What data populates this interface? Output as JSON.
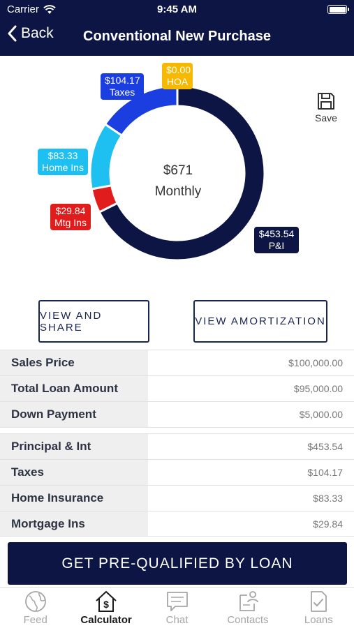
{
  "status": {
    "carrier": "Carrier",
    "time": "9:45 AM"
  },
  "nav": {
    "back_label": "Back",
    "title": "Conventional New Purchase"
  },
  "chart": {
    "center_amount": "$671",
    "center_label": "Monthly",
    "segments": [
      {
        "key": "pi",
        "value": 453.54,
        "color": "#0c1544",
        "line1": "$453.54",
        "line2": "P&I"
      },
      {
        "key": "mtg",
        "value": 29.84,
        "color": "#e01c1c",
        "line1": "$29.84",
        "line2": "Mtg Ins"
      },
      {
        "key": "home",
        "value": 83.33,
        "color": "#1ec0f2",
        "line1": "$83.33",
        "line2": "Home Ins"
      },
      {
        "key": "taxes",
        "value": 104.17,
        "color": "#1a3ee0",
        "line1": "$104.17",
        "line2": "Taxes"
      },
      {
        "key": "hoa",
        "value": 0.0,
        "color": "#f6b800",
        "line1": "$0.00",
        "line2": "HOA"
      }
    ]
  },
  "save_label": "Save",
  "buttons": {
    "view_share": "VIEW AND SHARE",
    "view_amort": "VIEW AMORTIZATION"
  },
  "table1": [
    {
      "label": "Sales Price",
      "value": "$100,000.00"
    },
    {
      "label": "Total Loan Amount",
      "value": "$95,000.00"
    },
    {
      "label": "Down Payment",
      "value": "$5,000.00"
    }
  ],
  "table2": [
    {
      "label": "Principal & Int",
      "value": "$453.54"
    },
    {
      "label": "Taxes",
      "value": "$104.17"
    },
    {
      "label": "Home Insurance",
      "value": "$83.33"
    },
    {
      "label": "Mortgage Ins",
      "value": "$29.84"
    }
  ],
  "cta_label": "GET PRE-QUALIFIED BY LOAN",
  "tabs": [
    {
      "label": "Feed",
      "icon": "globe-icon"
    },
    {
      "label": "Calculator",
      "icon": "house-dollar-icon"
    },
    {
      "label": "Chat",
      "icon": "chat-icon"
    },
    {
      "label": "Contacts",
      "icon": "contacts-icon"
    },
    {
      "label": "Loans",
      "icon": "document-check-icon"
    }
  ]
}
